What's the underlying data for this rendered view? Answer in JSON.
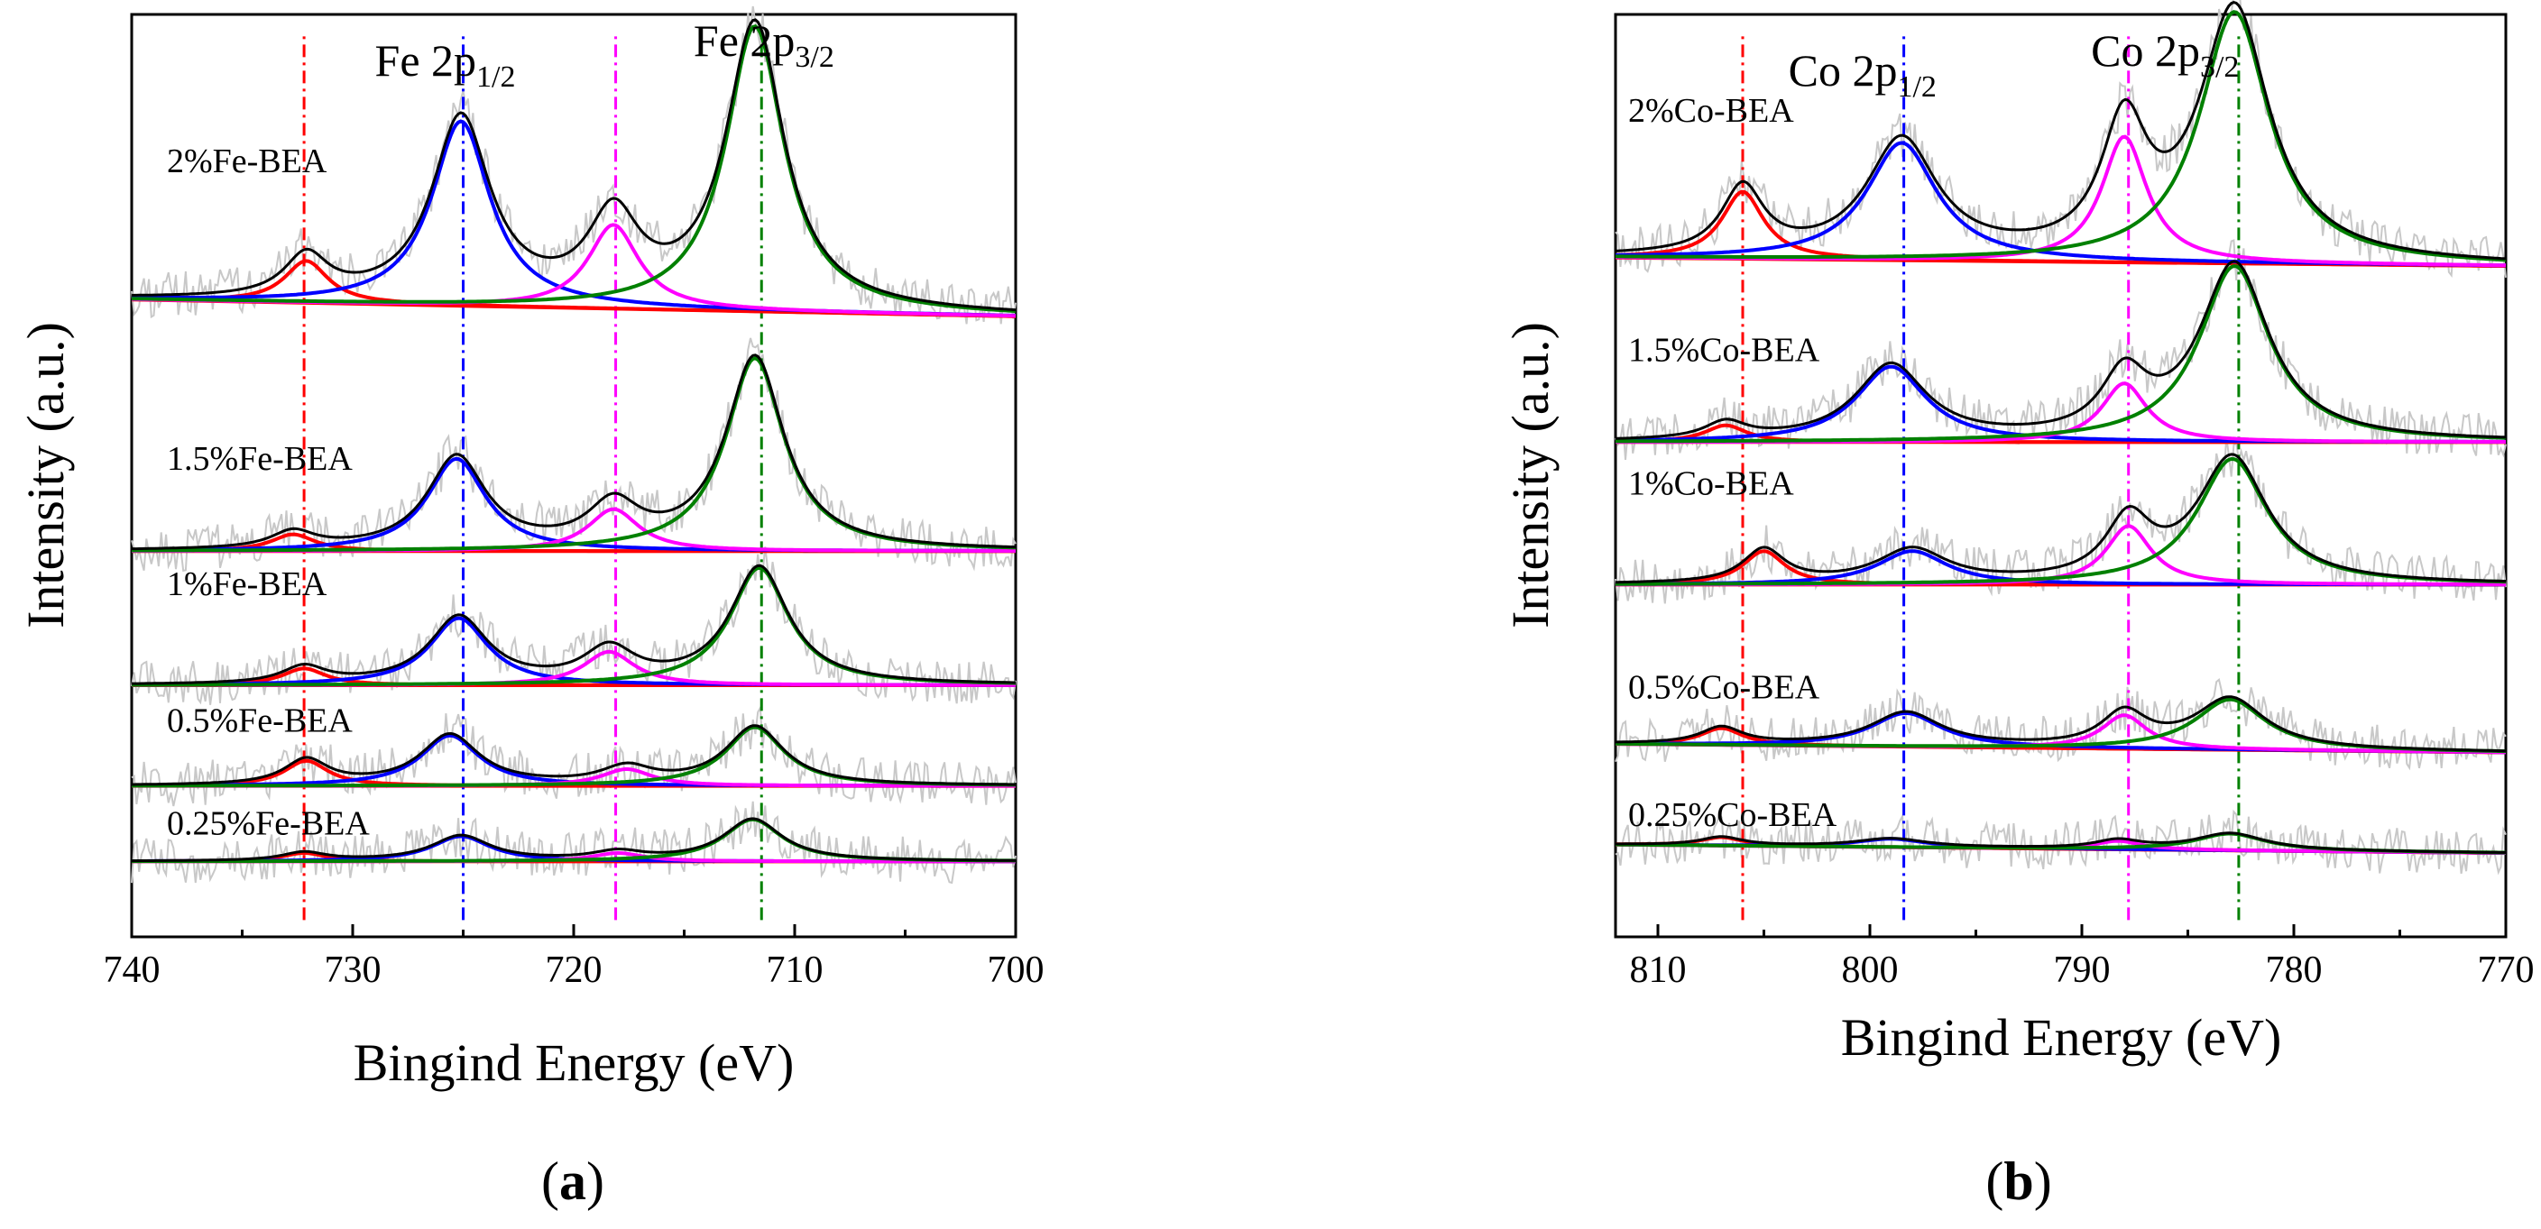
{
  "panel_a_caption": "a",
  "panel_b_caption": "b",
  "chart_data": [
    {
      "id": "a",
      "type": "line",
      "title": "",
      "xlabel": "Bingind Energy (eV)",
      "ylabel": "Intensity (a.u.)",
      "xlim": [
        740,
        700
      ],
      "x_ticks": [
        740,
        730,
        720,
        710,
        700
      ],
      "x_tick_labels": [
        "740",
        "730",
        "720",
        "710",
        "700"
      ],
      "ylim": [
        0,
        1.1
      ],
      "peak_titles": [
        {
          "main": "Fe 2p",
          "sub": "1/2",
          "x": 725.0
        },
        {
          "main": "Fe 2p",
          "sub": "3/2",
          "x": 711.8
        }
      ],
      "reference_lines": [
        {
          "x": 732.2,
          "color": "#ff0000"
        },
        {
          "x": 725.0,
          "color": "#0000ff"
        },
        {
          "x": 718.1,
          "color": "#ff00ff"
        },
        {
          "x": 711.5,
          "color": "#008000"
        }
      ],
      "peak_widths": {
        "red": 1.2,
        "blue": 1.6,
        "magenta": 1.4,
        "green": 1.6
      },
      "series": [
        {
          "name": "2%Fe-BEA",
          "baseline": 0.74,
          "baseline_end": 0.76,
          "peaks": {
            "red": [
              732.1,
              0.05
            ],
            "blue": [
              725.1,
              0.22
            ],
            "magenta": [
              718.2,
              0.1
            ],
            "green": [
              711.8,
              0.34
            ]
          }
        },
        {
          "name": "1.5%Fe-BEA",
          "baseline": 0.46,
          "baseline_end": 0.46,
          "peaks": {
            "red": [
              732.7,
              0.02
            ],
            "blue": [
              725.3,
              0.11
            ],
            "magenta": [
              718.2,
              0.05
            ],
            "green": [
              711.8,
              0.23
            ]
          }
        },
        {
          "name": "1%Fe-BEA",
          "baseline": 0.3,
          "baseline_end": 0.3,
          "peaks": {
            "red": [
              732.2,
              0.02
            ],
            "blue": [
              725.2,
              0.08
            ],
            "magenta": [
              718.4,
              0.04
            ],
            "green": [
              711.6,
              0.14
            ]
          }
        },
        {
          "name": "0.5%Fe-BEA",
          "baseline": 0.18,
          "baseline_end": 0.18,
          "peaks": {
            "red": [
              732.1,
              0.03
            ],
            "blue": [
              725.6,
              0.06
            ],
            "magenta": [
              717.6,
              0.02
            ],
            "green": [
              711.8,
              0.07
            ]
          }
        },
        {
          "name": "0.25%Fe-BEA",
          "baseline": 0.09,
          "baseline_end": 0.09,
          "peaks": {
            "red": [
              732.2,
              0.01
            ],
            "blue": [
              725.1,
              0.03
            ],
            "magenta": [
              718.0,
              0.01
            ],
            "green": [
              711.9,
              0.05
            ]
          }
        }
      ]
    },
    {
      "id": "b",
      "type": "line",
      "title": "",
      "xlabel": "Bingind Energy (eV)",
      "ylabel": "Intensity (a.u.)",
      "xlim": [
        812,
        770
      ],
      "x_ticks": [
        810,
        800,
        790,
        780,
        770
      ],
      "x_tick_labels": [
        "810",
        "800",
        "790",
        "780",
        "770"
      ],
      "ylim": [
        0,
        1.1
      ],
      "peak_titles": [
        {
          "main": "Co 2p",
          "sub": "1/2",
          "x": 799.5
        },
        {
          "main": "Co 2p",
          "sub": "3/2",
          "x": 786.5
        }
      ],
      "reference_lines": [
        {
          "x": 806.0,
          "color": "#ff0000"
        },
        {
          "x": 798.4,
          "color": "#0000ff"
        },
        {
          "x": 787.8,
          "color": "#ff00ff"
        },
        {
          "x": 782.6,
          "color": "#008000"
        }
      ],
      "peak_widths": {
        "red": 1.2,
        "blue": 2.0,
        "magenta": 1.3,
        "green": 2.0
      },
      "series": [
        {
          "name": "2%Co-BEA",
          "baseline": 0.8,
          "baseline_end": 0.81,
          "peaks": {
            "red": [
              806.0,
              0.08
            ],
            "blue": [
              798.5,
              0.14
            ],
            "magenta": [
              788.0,
              0.15
            ],
            "green": [
              782.8,
              0.3
            ]
          }
        },
        {
          "name": "1.5%Co-BEA",
          "baseline": 0.59,
          "baseline_end": 0.59,
          "peaks": {
            "red": [
              806.8,
              0.02
            ],
            "blue": [
              799.0,
              0.09
            ],
            "magenta": [
              788.0,
              0.07
            ],
            "green": [
              782.8,
              0.21
            ]
          }
        },
        {
          "name": "1%Co-BEA",
          "baseline": 0.42,
          "baseline_end": 0.42,
          "peaks": {
            "red": [
              805.0,
              0.04
            ],
            "blue": [
              798.0,
              0.04
            ],
            "magenta": [
              787.8,
              0.07
            ],
            "green": [
              782.9,
              0.15
            ]
          }
        },
        {
          "name": "0.5%Co-BEA",
          "baseline": 0.22,
          "baseline_end": 0.23,
          "peaks": {
            "red": [
              807.0,
              0.02
            ],
            "blue": [
              798.3,
              0.04
            ],
            "magenta": [
              788.0,
              0.04
            ],
            "green": [
              783.0,
              0.06
            ]
          }
        },
        {
          "name": "0.25%Co-BEA",
          "baseline": 0.1,
          "baseline_end": 0.11,
          "peaks": {
            "red": [
              807.0,
              0.01
            ],
            "blue": [
              799.0,
              0.01
            ],
            "magenta": [
              788.3,
              0.01
            ],
            "green": [
              783.0,
              0.02
            ]
          }
        }
      ]
    }
  ]
}
